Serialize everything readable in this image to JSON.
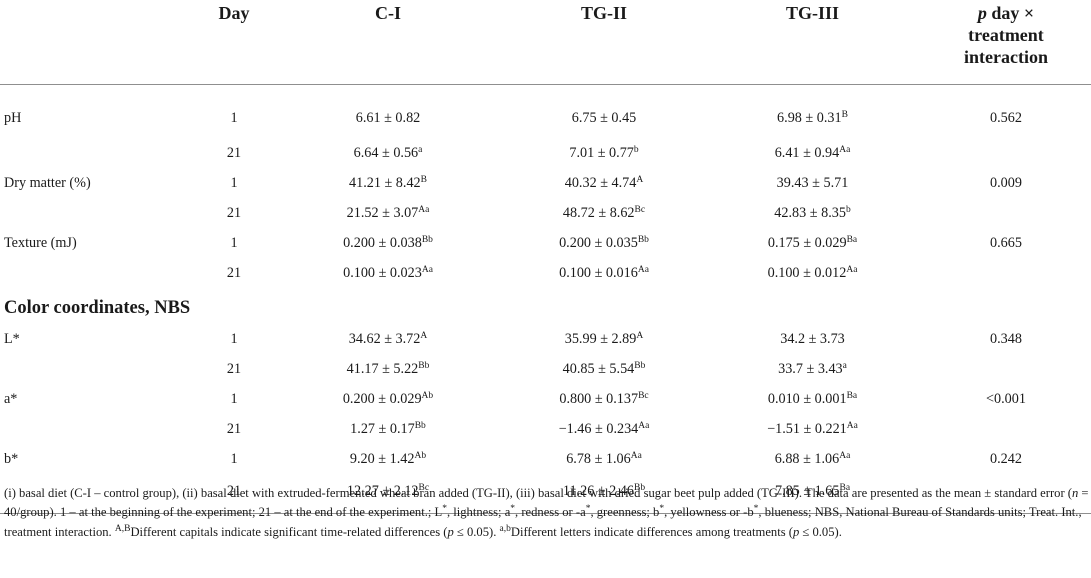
{
  "table": {
    "headers": {
      "parameter": "",
      "day": "Day",
      "c1": "C-I",
      "tg2": "TG-II",
      "tg3": "TG-III",
      "p_italic": "p",
      "p_rest1": "day ×",
      "p_rest2": "treatment",
      "p_rest3": "interaction"
    },
    "rows": [
      {
        "param": "pH",
        "day": "1",
        "c1": "6.61 ± 0.82",
        "c1_sup": "",
        "tg2": "6.75 ± 0.45",
        "tg2_sup": "",
        "tg3": "6.98 ± 0.31",
        "tg3_sup": "B",
        "p": "0.562"
      },
      {
        "param": "",
        "day": "21",
        "c1": "6.64 ± 0.56",
        "c1_sup": "a",
        "tg2": "7.01 ± 0.77",
        "tg2_sup": "b",
        "tg3": "6.41 ± 0.94",
        "tg3_sup": "Aa",
        "p": ""
      },
      {
        "param": "Dry matter (%)",
        "day": "1",
        "c1": "41.21 ± 8.42",
        "c1_sup": "B",
        "tg2": "40.32 ± 4.74",
        "tg2_sup": "A",
        "tg3": "39.43 ± 5.71",
        "tg3_sup": "",
        "p": "0.009"
      },
      {
        "param": "",
        "day": "21",
        "c1": "21.52 ± 3.07",
        "c1_sup": "Aa",
        "tg2": "48.72 ± 8.62",
        "tg2_sup": "Bc",
        "tg3": "42.83 ± 8.35",
        "tg3_sup": "b",
        "p": ""
      },
      {
        "param": "Texture (mJ)",
        "day": "1",
        "c1": "0.200 ± 0.038",
        "c1_sup": "Bb",
        "tg2": "0.200 ± 0.035",
        "tg2_sup": "Bb",
        "tg3": "0.175 ± 0.029",
        "tg3_sup": "Ba",
        "p": "0.665"
      },
      {
        "param": "",
        "day": "21",
        "c1": "0.100 ± 0.023",
        "c1_sup": "Aa",
        "tg2": "0.100 ± 0.016",
        "tg2_sup": "Aa",
        "tg3": "0.100 ± 0.012",
        "tg3_sup": "Aa",
        "p": ""
      }
    ],
    "section_title": "Color coordinates, NBS",
    "color_rows": [
      {
        "param": "L*",
        "day": "1",
        "c1": "34.62 ± 3.72",
        "c1_sup": "A",
        "tg2": "35.99 ± 2.89",
        "tg2_sup": "A",
        "tg3": "34.2 ± 3.73",
        "tg3_sup": "",
        "p": "0.348"
      },
      {
        "param": "",
        "day": "21",
        "c1": "41.17 ± 5.22",
        "c1_sup": "Bb",
        "tg2": "40.85 ± 5.54",
        "tg2_sup": "Bb",
        "tg3": "33.7 ± 3.43",
        "tg3_sup": "a",
        "p": ""
      },
      {
        "param": "a*",
        "day": "1",
        "c1": "0.200 ± 0.029",
        "c1_sup": "Ab",
        "tg2": "0.800 ± 0.137",
        "tg2_sup": "Bc",
        "tg3": "0.010 ± 0.001",
        "tg3_sup": "Ba",
        "p": "<0.001"
      },
      {
        "param": "",
        "day": "21",
        "c1": "1.27 ± 0.17",
        "c1_sup": "Bb",
        "tg2": "−1.46 ± 0.234",
        "tg2_sup": "Aa",
        "tg3": "−1.51 ± 0.221",
        "tg3_sup": "Aa",
        "p": ""
      },
      {
        "param": "b*",
        "day": "1",
        "c1": "9.20 ± 1.42",
        "c1_sup": "Ab",
        "tg2": "6.78 ± 1.06",
        "tg2_sup": "Aa",
        "tg3": "6.88 ± 1.06",
        "tg3_sup": "Aa",
        "p": "0.242"
      },
      {
        "param": "",
        "day": "21",
        "c1": "12.27 ± 2.12",
        "c1_sup": "Bc",
        "tg2": "11.26 ± 2.46",
        "tg2_sup": "Bb",
        "tg3": "7.85 ± 1.65",
        "tg3_sup": "Ba",
        "p": ""
      }
    ]
  },
  "footnote": {
    "t1": "(i) basal diet (C-I – control group), (ii) basal diet with extruded-fermented wheat bran added (TG-II), (iii) basal diet with dried sugar beet pulp added (TG-III). The data are presented as the mean ± standard error (",
    "n": "n",
    "t2": " = 40/group). 1 – at the beginning of the experiment; 21 – at the end of the experiment.; L",
    "s1": "*",
    "t3": ", lightness; a",
    "s2": "*",
    "t4": ", redness or -a",
    "s3": "*",
    "t5": ", greenness; b",
    "s4": "*",
    "t6": ", yellowness or -b",
    "s5": "*",
    "t7": ", blueness; NBS, National Bureau of Standards units; Treat. Int., treatment interaction. ",
    "s6": "A,B",
    "t8": "Different capitals indicate significant time-related differences (",
    "p1": "p",
    "t9": " ≤ 0.05). ",
    "s7": "a,b",
    "t10": "Different letters indicate differences among treatments (",
    "p2": "p",
    "t11": " ≤ 0.05)."
  }
}
